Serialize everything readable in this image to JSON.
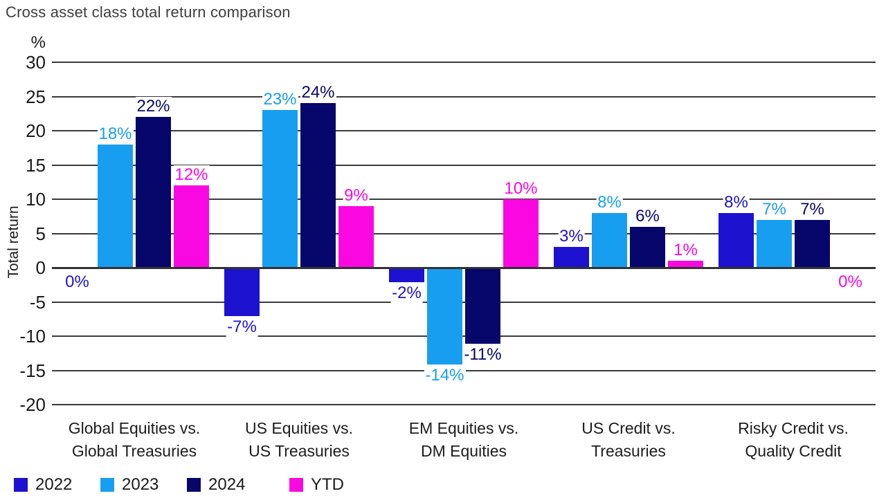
{
  "chart_data": {
    "type": "bar",
    "title": "Cross asset class total return comparison",
    "ylabel": "Total return",
    "y_unit_label": "%",
    "value_label_suffix": "%",
    "ylim": [
      -20,
      30
    ],
    "yticks": [
      30,
      25,
      20,
      15,
      10,
      5,
      0,
      -5,
      -10,
      -15,
      -20
    ],
    "grid": true,
    "legend_position": "bottom",
    "categories": [
      "Global Equities vs.\nGlobal Treasuries",
      "US Equities vs.\nUS Treasuries",
      "EM Equities vs.\nDM Equities",
      "US Credit vs.\nTreasuries",
      "Risky Credit vs.\nQuality Credit"
    ],
    "series": [
      {
        "name": "2022",
        "color": "#1c12d0",
        "values": [
          0,
          -7,
          -2,
          3,
          8
        ]
      },
      {
        "name": "2023",
        "color": "#189ef0",
        "values": [
          18,
          23,
          -14,
          8,
          7
        ]
      },
      {
        "name": "2024",
        "color": "#06066b",
        "values": [
          22,
          24,
          -11,
          6,
          7
        ]
      },
      {
        "name": "YTD",
        "color": "#f908e2",
        "values": [
          12,
          9,
          10,
          1,
          0
        ]
      }
    ],
    "colors": {
      "axis": "#3a3a3a",
      "text": "#1a1a1a",
      "title": "#3d3d3d",
      "background": "#ffffff"
    }
  }
}
